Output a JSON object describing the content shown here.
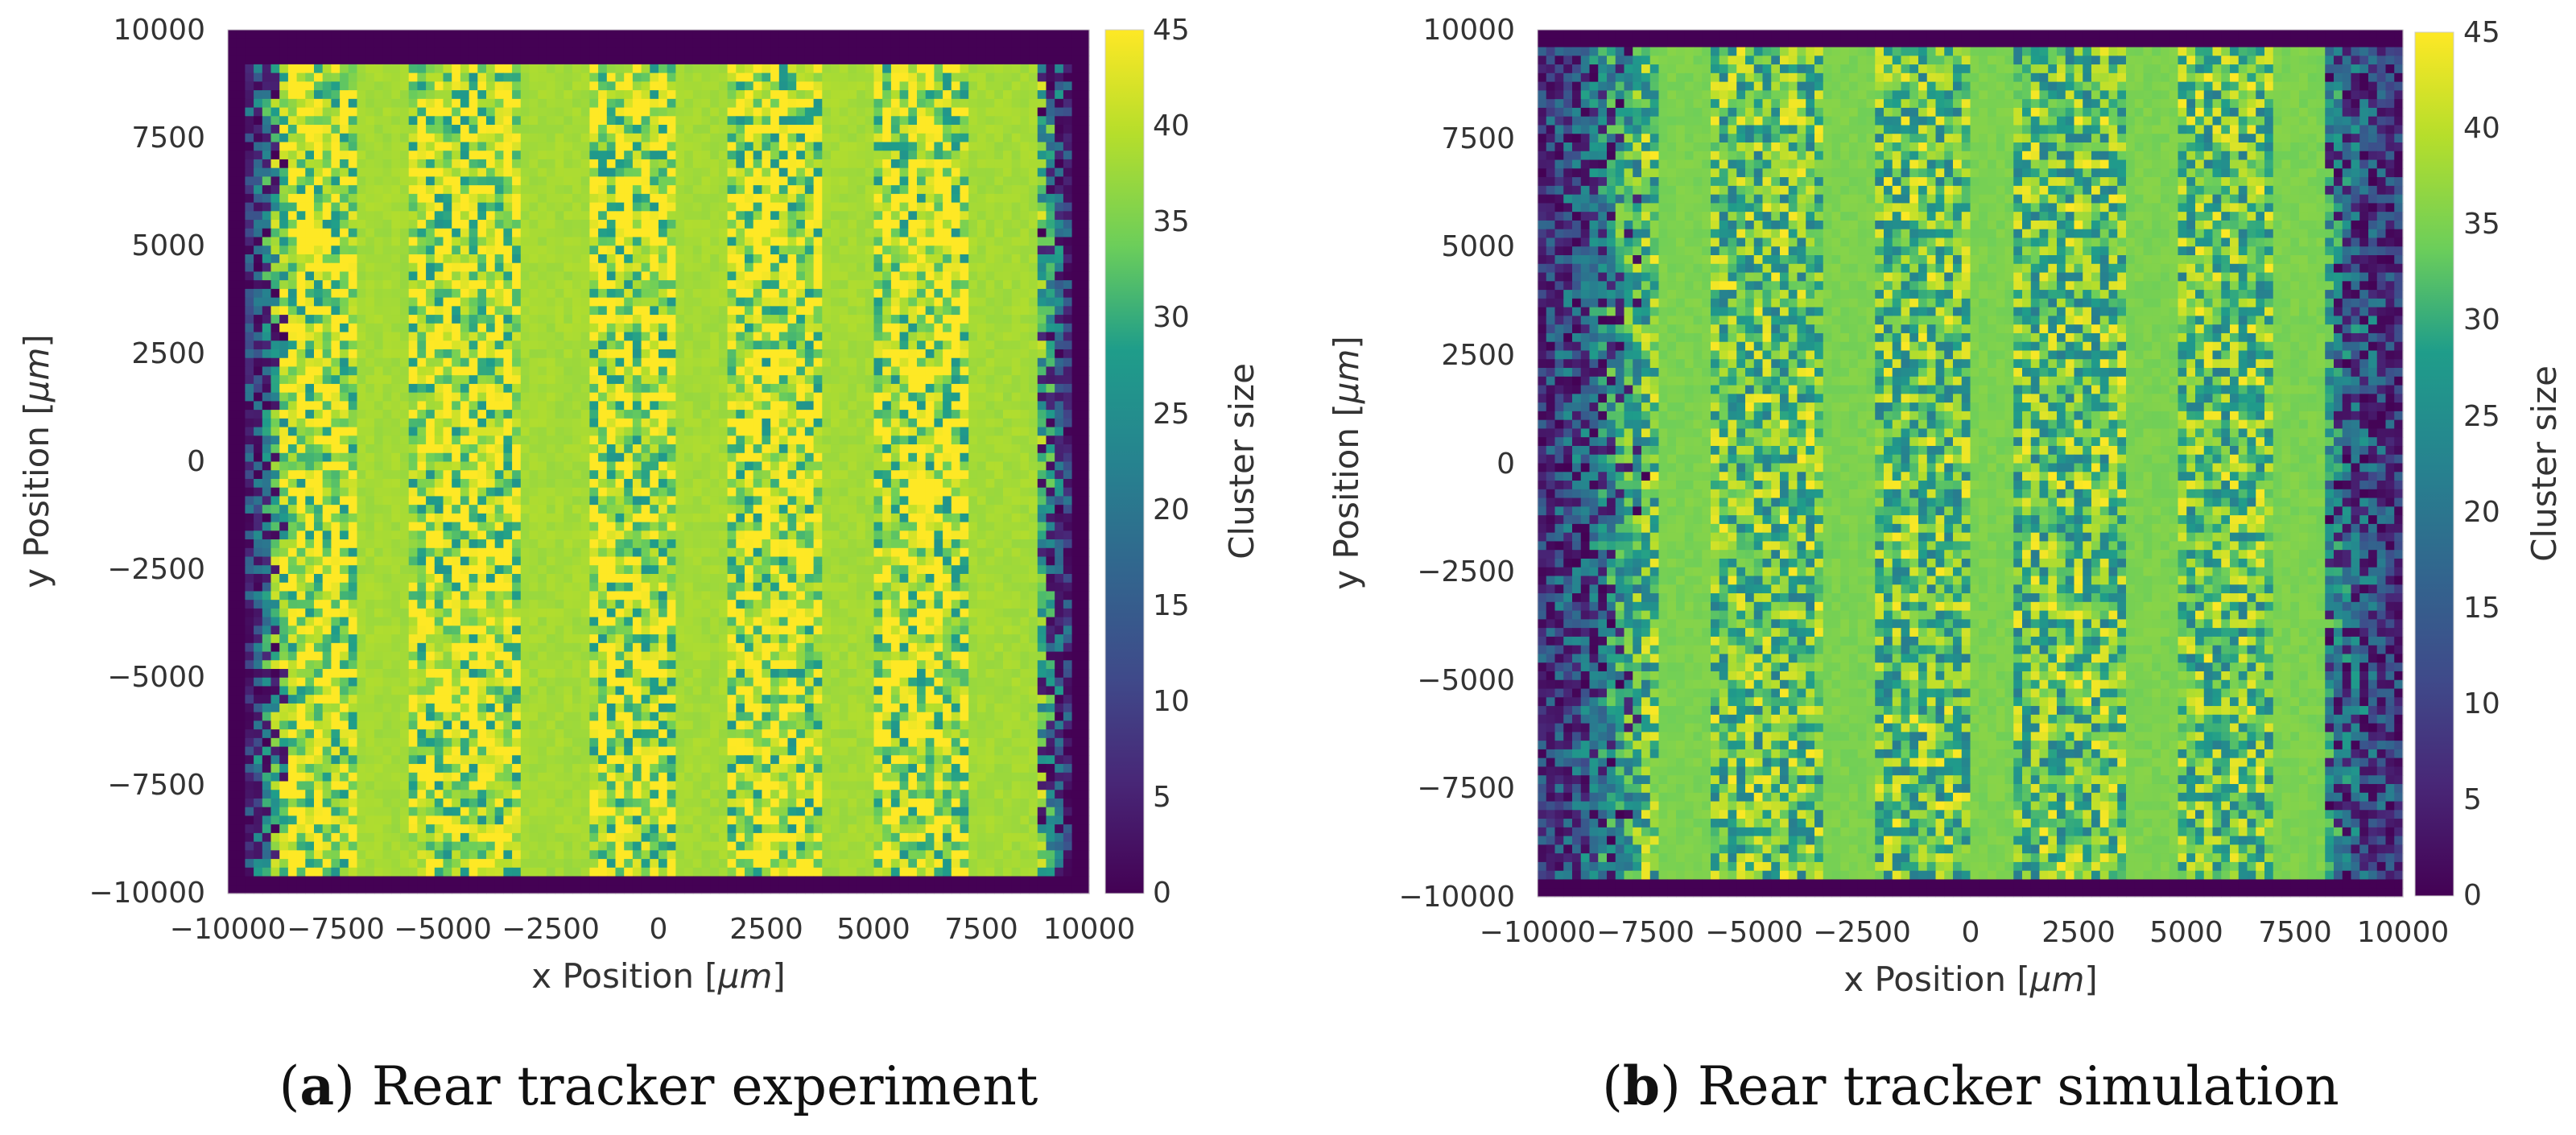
{
  "chart_data": [
    {
      "type": "heatmap",
      "panel_label": "a",
      "caption": "Rear tracker experiment",
      "xlabel_prefix": "x Position [",
      "xlabel_unit": "μm",
      "xlabel_suffix": "]",
      "ylabel_prefix": "y Position [",
      "ylabel_unit": "μm",
      "ylabel_suffix": "]",
      "xlim": [
        -10000,
        10000
      ],
      "ylim": [
        -10000,
        10000
      ],
      "xticks": [
        "−10000",
        "−7500",
        "−5000",
        "−2500",
        "0",
        "2500",
        "5000",
        "7500",
        "10000"
      ],
      "yticks": [
        "10000",
        "7500",
        "5000",
        "2500",
        "0",
        "−2500",
        "−5000",
        "−7500",
        "−10000"
      ],
      "colorbar": {
        "label": "Cluster size",
        "range": [
          0,
          45
        ],
        "ticks": [
          "45",
          "40",
          "35",
          "30",
          "25",
          "20",
          "15",
          "10",
          "5",
          "0"
        ],
        "colormap": "viridis"
      },
      "sensor_region": {
        "x": [
          -9500,
          9500
        ],
        "y": [
          -9600,
          9200
        ]
      },
      "edge_fade_width": 900,
      "background_value": 0,
      "uniform_strip_value": 38,
      "noisy_mean_value": 40,
      "noisy_spread": 14,
      "strips": [
        [
          -7000,
          -5800
        ],
        [
          -3200,
          -1700
        ],
        [
          500,
          1600
        ],
        [
          3800,
          5000
        ],
        [
          7300,
          8700
        ]
      ],
      "colors": {
        "background": "#440154"
      }
    },
    {
      "type": "heatmap",
      "panel_label": "b",
      "caption": "Rear tracker simulation",
      "xlabel_prefix": "x Position [",
      "xlabel_unit": "μm",
      "xlabel_suffix": "]",
      "ylabel_prefix": "y Position [",
      "ylabel_unit": "μm",
      "ylabel_suffix": "]",
      "xlim": [
        -10000,
        10000
      ],
      "ylim": [
        -10000,
        10000
      ],
      "xticks": [
        "−10000",
        "−7500",
        "−5000",
        "−2500",
        "0",
        "2500",
        "5000",
        "7500",
        "10000"
      ],
      "yticks": [
        "10000",
        "7500",
        "5000",
        "2500",
        "0",
        "−2500",
        "−5000",
        "−7500",
        "−10000"
      ],
      "colorbar": {
        "label": "Cluster size",
        "range": [
          0,
          45
        ],
        "ticks": [
          "45",
          "40",
          "35",
          "30",
          "25",
          "20",
          "15",
          "10",
          "5",
          "0"
        ],
        "colormap": "viridis"
      },
      "sensor_region": {
        "x": [
          -10000,
          10000
        ],
        "y": [
          -9600,
          9500
        ]
      },
      "edge_fade_width": 2600,
      "background_value": 0,
      "uniform_strip_value": 35,
      "noisy_mean_value": 33,
      "noisy_spread": 12,
      "strips": [
        [
          -7200,
          -6000
        ],
        [
          -3400,
          -2200
        ],
        [
          0,
          1000
        ],
        [
          3600,
          4800
        ],
        [
          7100,
          8100
        ]
      ],
      "colors": {
        "background": "#440154"
      }
    }
  ]
}
